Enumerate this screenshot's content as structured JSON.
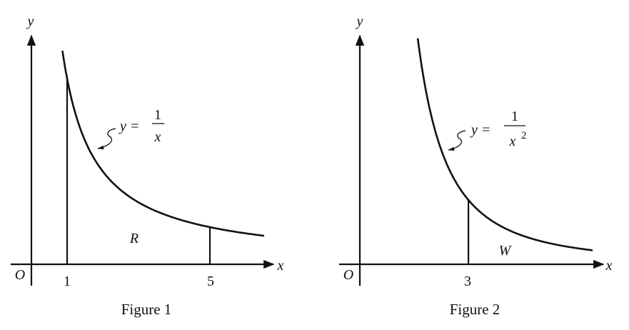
{
  "figures": [
    {
      "caption": "Figure 1",
      "function": "1/x",
      "exponent": 1,
      "equation": {
        "lhs": "y =",
        "numerator": "1",
        "denominator": "x",
        "power": ""
      },
      "axis_x_label": "x",
      "axis_y_label": "y",
      "origin_label": "O",
      "ticks": [
        "1",
        "5"
      ],
      "tick_values": [
        1,
        5
      ],
      "region_label": "R",
      "region_bounds": [
        1,
        5
      ]
    },
    {
      "caption": "Figure 2",
      "function": "1/x^2",
      "exponent": 2,
      "equation": {
        "lhs": "y =",
        "numerator": "1",
        "denominator": "x",
        "power": "2"
      },
      "axis_x_label": "x",
      "axis_y_label": "y",
      "origin_label": "O",
      "ticks": [
        "3"
      ],
      "tick_values": [
        3
      ],
      "region_label": "W",
      "region_bounds": [
        3,
        null
      ]
    }
  ]
}
